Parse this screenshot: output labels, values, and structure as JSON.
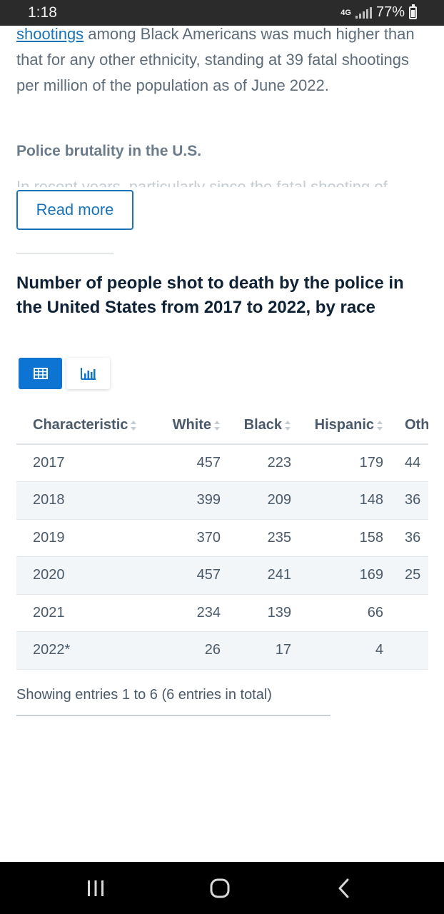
{
  "status_bar": {
    "time": "1:18",
    "network": "4G",
    "battery": "77%"
  },
  "article": {
    "link_text": "shootings",
    "text_after_link": " among Black Americans was much higher than that for any other ethnicity, standing at 39 fatal shootings per million of the population as of June 2022.",
    "section_heading": "Police brutality in the U.S.",
    "faded_text": "In recent years, particularly since the fatal shooting of"
  },
  "read_more_label": "Read more",
  "chart_title": "Number of people shot to death by the police in the United States from 2017 to 2022, by race",
  "table": {
    "headers": [
      "Characteristic",
      "White",
      "Black",
      "Hispanic",
      "Other"
    ],
    "rows": [
      [
        "2017",
        "457",
        "223",
        "179",
        "44"
      ],
      [
        "2018",
        "399",
        "209",
        "148",
        "36"
      ],
      [
        "2019",
        "370",
        "235",
        "158",
        "36"
      ],
      [
        "2020",
        "457",
        "241",
        "169",
        "25"
      ],
      [
        "2021",
        "234",
        "139",
        "66",
        ""
      ],
      [
        "2022*",
        "26",
        "17",
        "4",
        ""
      ]
    ]
  },
  "showing_text": "Showing entries 1 to 6 (6 entries in total)",
  "colors": {
    "accent": "#0d74d4",
    "link": "#1a73b8",
    "title": "#0f2235"
  }
}
